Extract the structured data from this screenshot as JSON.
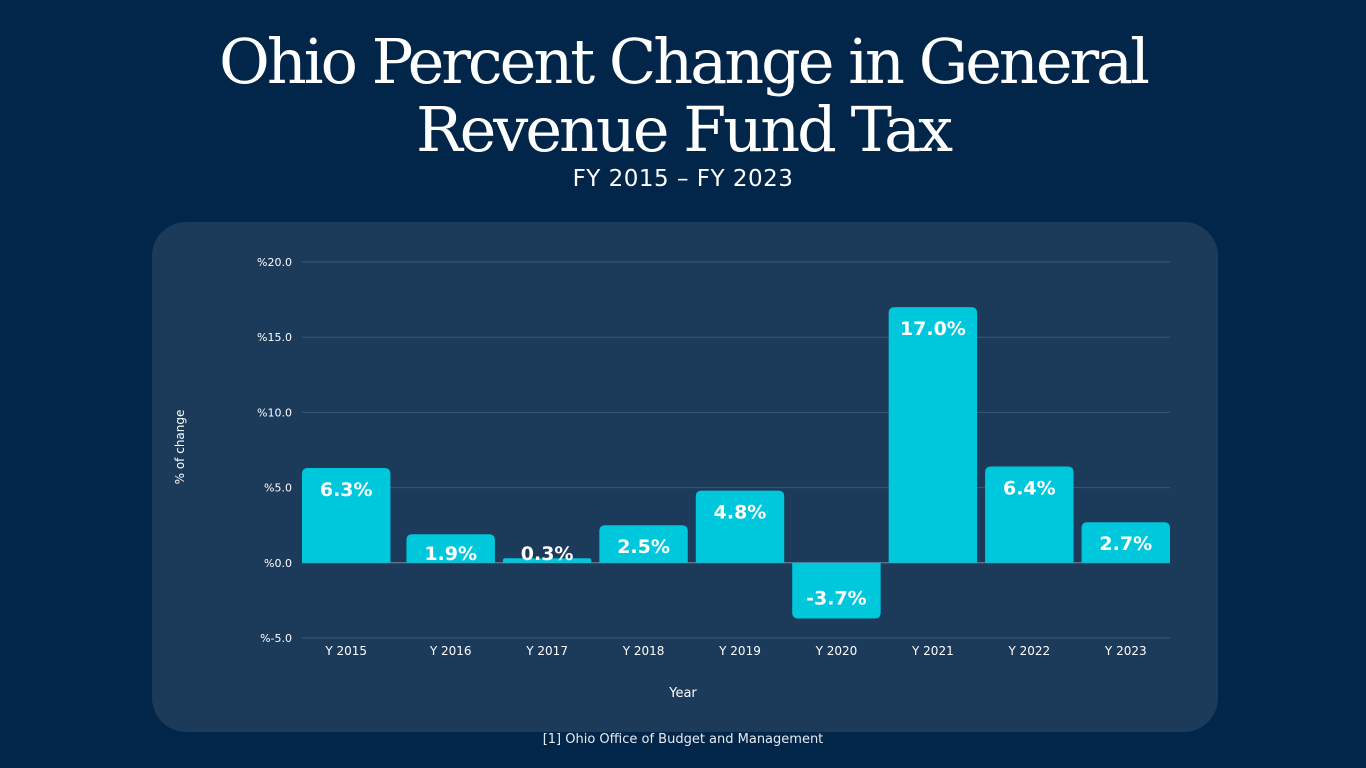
{
  "title_line1": "Ohio Percent Change in General",
  "title_line2": "Revenue Fund Tax",
  "subtitle": "FY 2015 – FY 2023",
  "footnote": "[1] Ohio Office of Budget and Management",
  "colors": {
    "background": "#02254a",
    "panel": "#1c3a59",
    "bar": "#00c8dc",
    "grid": "#3a5876",
    "text": "#ffffff"
  },
  "chart_data": {
    "type": "bar",
    "title": "Ohio Percent Change in General Revenue Fund Tax",
    "subtitle": "FY 2015 – FY 2023",
    "xlabel": "Year",
    "ylabel": "% of change",
    "categories": [
      "Y 2015",
      "Y 2016",
      "Y 2017",
      "Y 2018",
      "Y 2019",
      "Y 2020",
      "Y 2021",
      "Y 2022",
      "Y 2023"
    ],
    "values": [
      6.3,
      1.9,
      0.3,
      2.5,
      4.8,
      -3.7,
      17.0,
      6.4,
      2.7
    ],
    "data_labels": [
      "6.3%",
      "1.9%",
      "0.3%",
      "2.5%",
      "4.8%",
      "-3.7%",
      "17.0%",
      "6.4%",
      "2.7%"
    ],
    "yticks": [
      -5,
      0,
      5,
      10,
      15,
      20
    ],
    "ytick_labels": [
      "%-5.0",
      "%0.0",
      "%5.0",
      "%10.0",
      "%15.0",
      "%20.0"
    ],
    "ylim": [
      -5,
      20
    ],
    "grid": true,
    "legend": "none"
  }
}
